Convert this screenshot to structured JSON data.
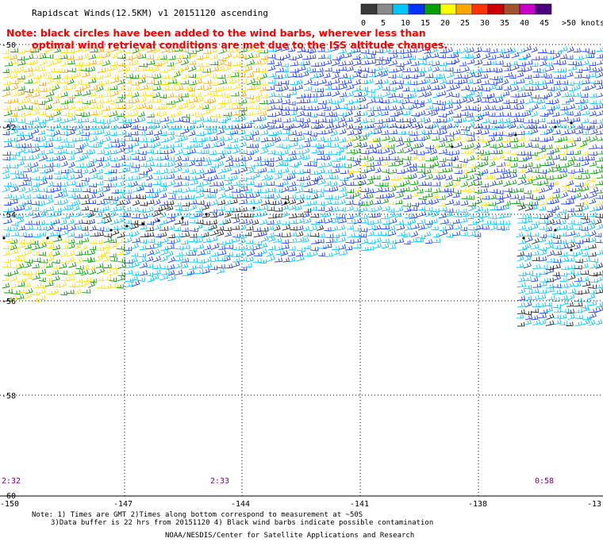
{
  "title": "Rapidscat Winds(12.5KM) v1 20151120 ascending",
  "legend": {
    "labels": [
      "0",
      "5",
      "10",
      "15",
      "20",
      "25",
      "30",
      "35",
      "40",
      "45",
      ">50 knots"
    ],
    "colors": [
      "#3a3a3a",
      "#8a8a8a",
      "#00c8ff",
      "#0032ff",
      "#00a000",
      "#ffff00",
      "#ffa500",
      "#ff3300",
      "#cc0000",
      "#a0522d",
      "#cc00cc",
      "#4b0082"
    ]
  },
  "note_red": {
    "line1": "Note: black circles have been added to the wind barbs, wherever less than",
    "line2": "optimal wind retrieval conditions are met due to the ISS altitude changes."
  },
  "axes": {
    "lat_labels": [
      "-50",
      "-52",
      "-54",
      "-56",
      "-58",
      "-60"
    ],
    "lon_labels": [
      "-150",
      "-147",
      "-144",
      "-141",
      "-138",
      "-13"
    ]
  },
  "pass_times": [
    "2:32",
    "2:33",
    "0:58"
  ],
  "footer": {
    "line1": "Note: 1) Times are GMT 2)Times along bottom correspond to measurement at ~50S",
    "line2": "3)Data buffer is 22 hrs from 20151120 4) Black wind barbs indicate possible contamination",
    "line3": "NOAA/NESDIS/Center for Satellite Applications and Research"
  },
  "colors": {
    "note": "#ff0000",
    "times": "#800080",
    "grid": "#000000"
  }
}
